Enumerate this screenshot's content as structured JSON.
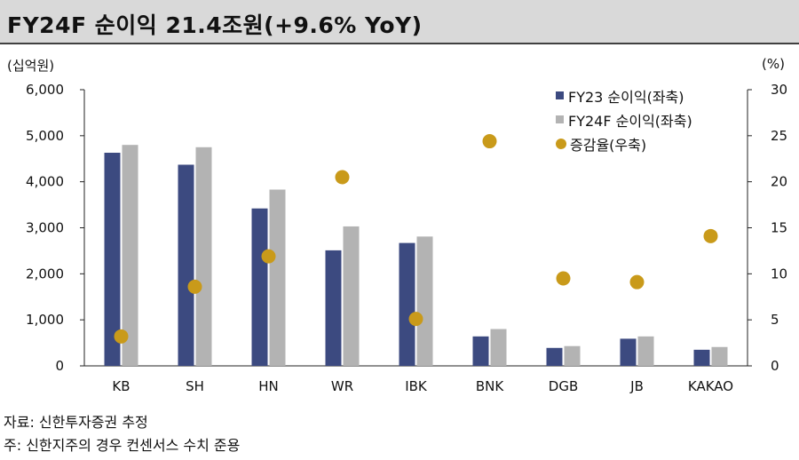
{
  "title": "FY24F 순이익 21.4조원(+9.6% YoY)",
  "left_unit": "(십억원)",
  "right_unit": "(%)",
  "footer": {
    "source": "자료: 신한투자증권 추정",
    "note": "주: 신한지주의 경우 컨센서스 수치 준용"
  },
  "legend": [
    {
      "label": "FY23 순이익(좌축)",
      "kind": "bar",
      "color": "#3c4a80"
    },
    {
      "label": "FY24F 순이익(좌축)",
      "kind": "bar",
      "color": "#b3b3b3"
    },
    {
      "label": "증감율(우축)",
      "kind": "dot",
      "color": "#c99a1a"
    }
  ],
  "chart_data": {
    "type": "bar",
    "categories": [
      "KB",
      "SH",
      "HN",
      "WR",
      "IBK",
      "BNK",
      "DGB",
      "JB",
      "KAKAO"
    ],
    "series": [
      {
        "name": "FY23 순이익(좌축)",
        "axis": "left",
        "color": "#3c4a80",
        "values": [
          4630,
          4370,
          3420,
          2510,
          2670,
          640,
          390,
          590,
          350
        ]
      },
      {
        "name": "FY24F 순이익(좌축)",
        "axis": "left",
        "color": "#b3b3b3",
        "values": [
          4800,
          4750,
          3830,
          3030,
          2810,
          800,
          430,
          640,
          410
        ]
      },
      {
        "name": "증감율(우축)",
        "axis": "right",
        "type": "scatter",
        "color": "#c99a1a",
        "values": [
          3.2,
          8.6,
          11.9,
          20.5,
          5.1,
          24.4,
          9.5,
          9.1,
          14.1
        ]
      }
    ],
    "left_axis": {
      "ylim": [
        0,
        6000
      ],
      "ticks": [
        "0",
        "1,000",
        "2,000",
        "3,000",
        "4,000",
        "5,000",
        "6,000"
      ],
      "tick_values": [
        0,
        1000,
        2000,
        3000,
        4000,
        5000,
        6000
      ]
    },
    "right_axis": {
      "ylim": [
        0,
        30
      ],
      "ticks": [
        "0",
        "5",
        "10",
        "15",
        "20",
        "25",
        "30"
      ],
      "tick_values": [
        0,
        5,
        10,
        15,
        20,
        25,
        30
      ]
    },
    "grid": false,
    "legend_position": "top-right"
  }
}
